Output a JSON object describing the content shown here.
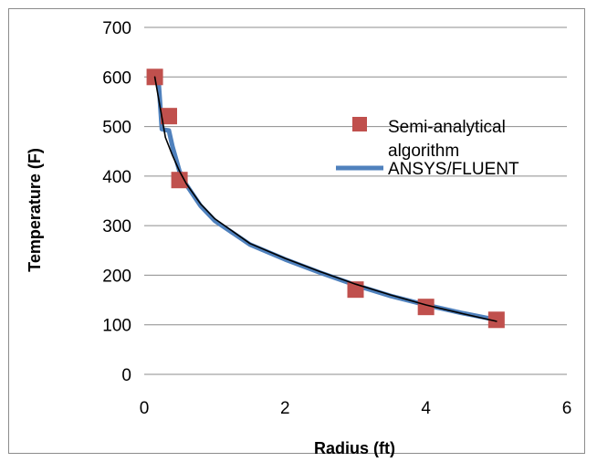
{
  "chart_data": {
    "type": "scatter",
    "xlabel": "Radius (ft)",
    "ylabel": "Temperature (F)",
    "xlim": [
      0,
      6
    ],
    "ylim": [
      0,
      700
    ],
    "xticks": [
      "0",
      "2",
      "4",
      "6"
    ],
    "yticks": [
      "0",
      "100",
      "200",
      "300",
      "400",
      "500",
      "600",
      "700"
    ],
    "grid": "horizontal",
    "legend_position": "right",
    "series": [
      {
        "name": "Semi-analytical algorithm",
        "legend_lines": [
          "Semi-analytical",
          "algorithm"
        ],
        "type": "scatter",
        "marker": "square",
        "color": "#c0504d",
        "points": [
          [
            0.15,
            600
          ],
          [
            0.35,
            521
          ],
          [
            0.5,
            392
          ],
          [
            3.0,
            171
          ],
          [
            4.0,
            136
          ],
          [
            5.0,
            110
          ]
        ]
      },
      {
        "name": "ANSYS/FLUENT",
        "type": "line",
        "color": "#4f81bd",
        "points": [
          [
            0.12,
            600
          ],
          [
            0.2,
            600
          ],
          [
            0.25,
            495
          ],
          [
            0.3,
            493
          ],
          [
            0.35,
            492
          ],
          [
            0.4,
            460
          ],
          [
            0.5,
            410
          ],
          [
            0.6,
            382
          ],
          [
            0.8,
            340
          ],
          [
            1.0,
            310
          ],
          [
            1.5,
            262
          ],
          [
            2.0,
            232
          ],
          [
            2.5,
            205
          ],
          [
            3.0,
            180
          ],
          [
            3.5,
            158
          ],
          [
            4.0,
            140
          ],
          [
            4.5,
            124
          ],
          [
            5.0,
            110
          ]
        ]
      },
      {
        "name": "",
        "type": "line",
        "color": "#000000",
        "points": [
          [
            0.15,
            600
          ],
          [
            0.3,
            478
          ],
          [
            0.4,
            442
          ],
          [
            0.5,
            410
          ],
          [
            0.6,
            384
          ],
          [
            0.8,
            344
          ],
          [
            1.0,
            314
          ],
          [
            1.5,
            264
          ],
          [
            2.0,
            234
          ],
          [
            2.5,
            207
          ],
          [
            3.0,
            182
          ],
          [
            3.5,
            160
          ],
          [
            4.0,
            140
          ],
          [
            4.5,
            123
          ],
          [
            5.0,
            107
          ]
        ]
      }
    ]
  }
}
